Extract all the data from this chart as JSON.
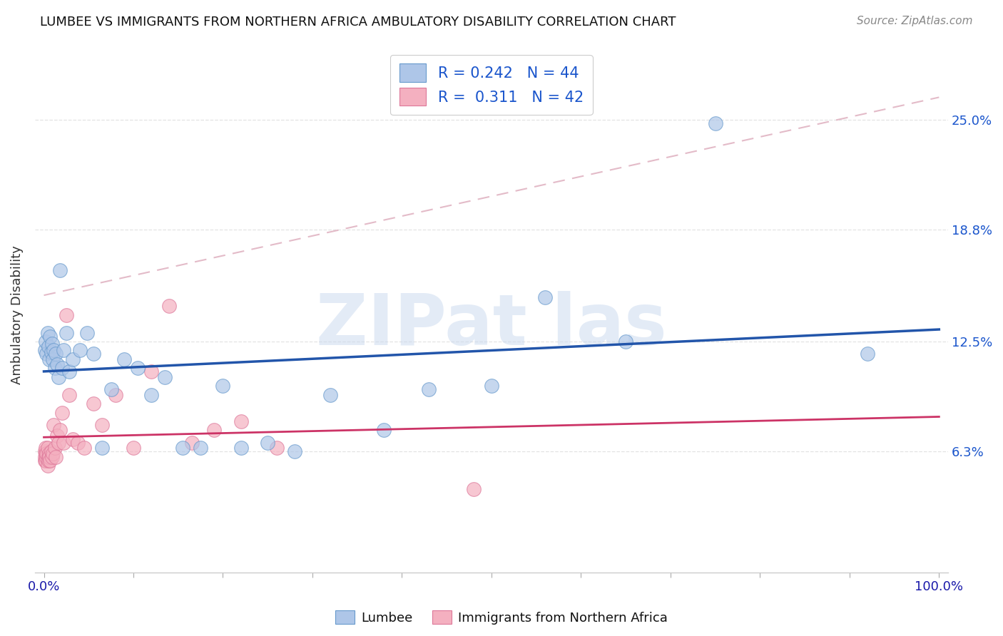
{
  "title": "LUMBEE VS IMMIGRANTS FROM NORTHERN AFRICA AMBULATORY DISABILITY CORRELATION CHART",
  "source": "Source: ZipAtlas.com",
  "ylabel": "Ambulatory Disability",
  "ytick_labels": [
    "6.3%",
    "12.5%",
    "18.8%",
    "25.0%"
  ],
  "ytick_values": [
    0.063,
    0.125,
    0.188,
    0.25
  ],
  "xlim": [
    -0.01,
    1.01
  ],
  "ylim": [
    -0.005,
    0.285
  ],
  "lumbee_R": 0.242,
  "lumbee_N": 44,
  "immigrant_R": 0.311,
  "immigrant_N": 42,
  "lumbee_color": "#aec6e8",
  "lumbee_edge_color": "#6699cc",
  "lumbee_line_color": "#2255aa",
  "immigrant_color": "#f4b0c0",
  "immigrant_edge_color": "#dd7799",
  "immigrant_line_color": "#cc3366",
  "immigrant_dash_color": "#ddaabb",
  "background_color": "#ffffff",
  "grid_color": "#dddddd",
  "watermark_color": "#c8d8ee",
  "lumbee_x": [
    0.001,
    0.002,
    0.003,
    0.004,
    0.005,
    0.006,
    0.007,
    0.008,
    0.009,
    0.01,
    0.011,
    0.012,
    0.013,
    0.015,
    0.016,
    0.018,
    0.02,
    0.022,
    0.025,
    0.028,
    0.032,
    0.04,
    0.048,
    0.055,
    0.065,
    0.075,
    0.09,
    0.105,
    0.12,
    0.135,
    0.155,
    0.175,
    0.2,
    0.22,
    0.25,
    0.28,
    0.32,
    0.38,
    0.43,
    0.5,
    0.56,
    0.65,
    0.75,
    0.92
  ],
  "lumbee_y": [
    0.12,
    0.125,
    0.118,
    0.13,
    0.122,
    0.115,
    0.128,
    0.119,
    0.124,
    0.115,
    0.12,
    0.11,
    0.118,
    0.112,
    0.105,
    0.165,
    0.11,
    0.12,
    0.13,
    0.108,
    0.115,
    0.12,
    0.13,
    0.118,
    0.065,
    0.098,
    0.115,
    0.11,
    0.095,
    0.105,
    0.065,
    0.065,
    0.1,
    0.065,
    0.068,
    0.063,
    0.095,
    0.075,
    0.098,
    0.1,
    0.15,
    0.125,
    0.248,
    0.118
  ],
  "immigrant_x": [
    0.001,
    0.001,
    0.001,
    0.002,
    0.002,
    0.002,
    0.003,
    0.003,
    0.004,
    0.004,
    0.005,
    0.005,
    0.006,
    0.006,
    0.007,
    0.008,
    0.009,
    0.01,
    0.011,
    0.012,
    0.013,
    0.015,
    0.016,
    0.018,
    0.02,
    0.022,
    0.025,
    0.028,
    0.032,
    0.038,
    0.045,
    0.055,
    0.065,
    0.08,
    0.1,
    0.12,
    0.14,
    0.165,
    0.19,
    0.22,
    0.26,
    0.48
  ],
  "immigrant_y": [
    0.063,
    0.058,
    0.06,
    0.062,
    0.058,
    0.065,
    0.06,
    0.062,
    0.055,
    0.065,
    0.06,
    0.058,
    0.062,
    0.06,
    0.058,
    0.063,
    0.06,
    0.062,
    0.078,
    0.065,
    0.06,
    0.072,
    0.068,
    0.075,
    0.085,
    0.068,
    0.14,
    0.095,
    0.07,
    0.068,
    0.065,
    0.09,
    0.078,
    0.095,
    0.065,
    0.108,
    0.145,
    0.068,
    0.075,
    0.08,
    0.065,
    0.042
  ]
}
